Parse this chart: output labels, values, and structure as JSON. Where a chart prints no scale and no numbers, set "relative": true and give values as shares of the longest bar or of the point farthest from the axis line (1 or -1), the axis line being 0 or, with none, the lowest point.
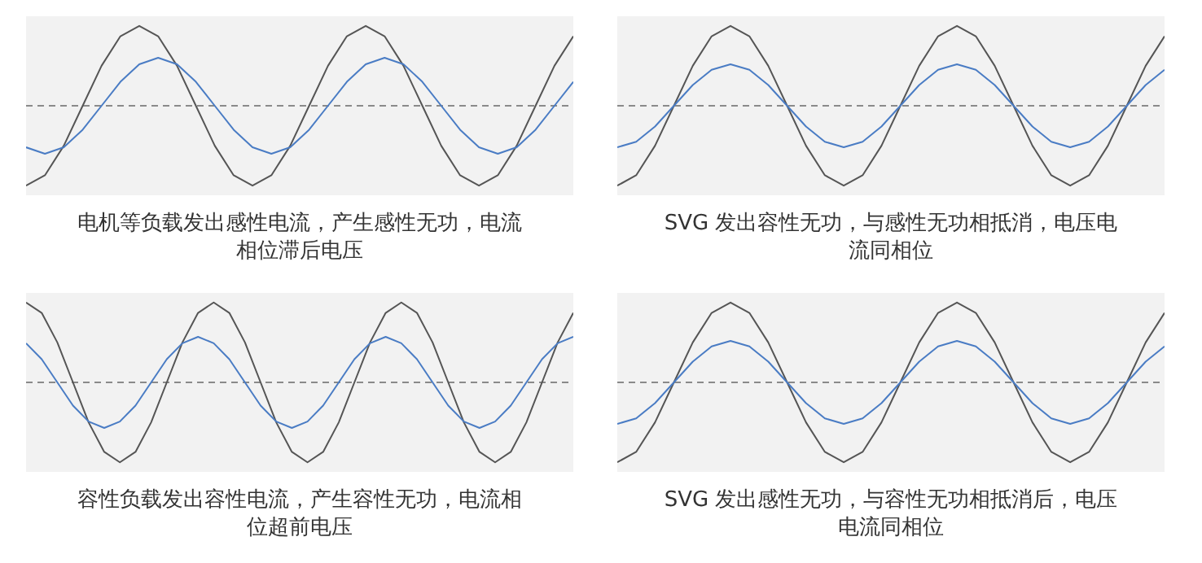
{
  "chart_data": [
    {
      "type": "line",
      "title": "电机等负载发出感性电流，产生感性无功，电流相位滞后电压",
      "relative": true,
      "ref_lines": [
        {
          "axis": "y",
          "value": 0,
          "line_style": "dashed",
          "color": "#8a8a8a"
        }
      ],
      "marker": "none",
      "line_style": "solid",
      "tick_labels": false,
      "categories": [
        null,
        null,
        null,
        null,
        null,
        null,
        null,
        null,
        null,
        null,
        null,
        null,
        null,
        null,
        null,
        null,
        null,
        null,
        null,
        null,
        null,
        null,
        null,
        null,
        null,
        null,
        null,
        null,
        null,
        null
      ],
      "series": [
        {
          "color": "#555555",
          "values": [
            -1,
            -0.87,
            -0.5,
            0,
            0.5,
            0.87,
            1,
            0.87,
            0.5,
            0,
            -0.5,
            -0.87,
            -1,
            -0.87,
            -0.5,
            0,
            0.5,
            0.87,
            1,
            0.87,
            0.5,
            0,
            -0.5,
            -0.87,
            -1,
            -0.87,
            -0.5,
            0,
            0.5,
            0.87
          ]
        },
        {
          "color": "#4a7cc4",
          "values": [
            -0.52,
            -0.6,
            -0.52,
            -0.3,
            0,
            0.3,
            0.52,
            0.6,
            0.52,
            0.3,
            0,
            -0.3,
            -0.52,
            -0.6,
            -0.52,
            -0.3,
            0,
            0.3,
            0.52,
            0.6,
            0.52,
            0.3,
            0,
            -0.3,
            -0.52,
            -0.6,
            -0.52,
            -0.3,
            0,
            0.3
          ]
        }
      ]
    },
    {
      "type": "line",
      "title": "SVG 发出容性无功，与感性无功相抵消，电压电流同相位",
      "relative": true,
      "ref_lines": [
        {
          "axis": "y",
          "value": 0,
          "line_style": "dashed",
          "color": "#8a8a8a"
        }
      ],
      "marker": "none",
      "line_style": "solid",
      "tick_labels": false,
      "categories": [
        null,
        null,
        null,
        null,
        null,
        null,
        null,
        null,
        null,
        null,
        null,
        null,
        null,
        null,
        null,
        null,
        null,
        null,
        null,
        null,
        null,
        null,
        null,
        null,
        null,
        null,
        null,
        null,
        null,
        null
      ],
      "series": [
        {
          "color": "#555555",
          "values": [
            -1,
            -0.87,
            -0.5,
            0,
            0.5,
            0.87,
            1,
            0.87,
            0.5,
            0,
            -0.5,
            -0.87,
            -1,
            -0.87,
            -0.5,
            0,
            0.5,
            0.87,
            1,
            0.87,
            0.5,
            0,
            -0.5,
            -0.87,
            -1,
            -0.87,
            -0.5,
            0,
            0.5,
            0.87
          ]
        },
        {
          "color": "#4a7cc4",
          "values": [
            -0.52,
            -0.45,
            -0.26,
            0,
            0.26,
            0.45,
            0.52,
            0.45,
            0.26,
            0,
            -0.26,
            -0.45,
            -0.52,
            -0.45,
            -0.26,
            0,
            0.26,
            0.45,
            0.52,
            0.45,
            0.26,
            0,
            -0.26,
            -0.45,
            -0.52,
            -0.45,
            -0.26,
            0,
            0.26,
            0.45
          ]
        }
      ]
    },
    {
      "type": "line",
      "title": "容性负载发出容性电流，产生容性无功，电流相位超前电压",
      "relative": true,
      "ref_lines": [
        {
          "axis": "y",
          "value": 0,
          "line_style": "dashed",
          "color": "#8a8a8a"
        }
      ],
      "marker": "none",
      "line_style": "solid",
      "tick_labels": false,
      "categories": [
        null,
        null,
        null,
        null,
        null,
        null,
        null,
        null,
        null,
        null,
        null,
        null,
        null,
        null,
        null,
        null,
        null,
        null,
        null,
        null,
        null,
        null,
        null,
        null,
        null,
        null,
        null,
        null,
        null,
        null,
        null,
        null,
        null,
        null,
        null,
        null
      ],
      "series": [
        {
          "color": "#555555",
          "values": [
            1,
            0.87,
            0.5,
            0,
            -0.5,
            -0.87,
            -1,
            -0.87,
            -0.5,
            0,
            0.5,
            0.87,
            1,
            0.87,
            0.5,
            0,
            -0.5,
            -0.87,
            -1,
            -0.87,
            -0.5,
            0,
            0.5,
            0.87,
            1,
            0.87,
            0.5,
            0,
            -0.5,
            -0.87,
            -1,
            -0.87,
            -0.5,
            0,
            0.5,
            0.87
          ]
        },
        {
          "color": "#4a7cc4",
          "values": [
            0.49,
            0.29,
            0,
            -0.29,
            -0.49,
            -0.57,
            -0.49,
            -0.29,
            0,
            0.29,
            0.49,
            0.57,
            0.49,
            0.29,
            0,
            -0.29,
            -0.49,
            -0.57,
            -0.49,
            -0.29,
            0,
            0.29,
            0.49,
            0.57,
            0.49,
            0.29,
            0,
            -0.29,
            -0.49,
            -0.57,
            -0.49,
            -0.29,
            0,
            0.29,
            0.49,
            0.57
          ]
        }
      ]
    },
    {
      "type": "line",
      "title": "SVG 发出感性无功，与容性无功相抵消后，电压电流同相位",
      "relative": true,
      "ref_lines": [
        {
          "axis": "y",
          "value": 0,
          "line_style": "dashed",
          "color": "#8a8a8a"
        }
      ],
      "marker": "none",
      "line_style": "solid",
      "tick_labels": false,
      "categories": [
        null,
        null,
        null,
        null,
        null,
        null,
        null,
        null,
        null,
        null,
        null,
        null,
        null,
        null,
        null,
        null,
        null,
        null,
        null,
        null,
        null,
        null,
        null,
        null,
        null,
        null,
        null,
        null,
        null,
        null
      ],
      "series": [
        {
          "color": "#555555",
          "values": [
            -1,
            -0.87,
            -0.5,
            0,
            0.5,
            0.87,
            1,
            0.87,
            0.5,
            0,
            -0.5,
            -0.87,
            -1,
            -0.87,
            -0.5,
            0,
            0.5,
            0.87,
            1,
            0.87,
            0.5,
            0,
            -0.5,
            -0.87,
            -1,
            -0.87,
            -0.5,
            0,
            0.5,
            0.87
          ]
        },
        {
          "color": "#4a7cc4",
          "values": [
            -0.52,
            -0.45,
            -0.26,
            0,
            0.26,
            0.45,
            0.52,
            0.45,
            0.26,
            0,
            -0.26,
            -0.45,
            -0.52,
            -0.45,
            -0.26,
            0,
            0.26,
            0.45,
            0.52,
            0.45,
            0.26,
            0,
            -0.26,
            -0.45,
            -0.52,
            -0.45,
            -0.26,
            0,
            0.26,
            0.45
          ]
        }
      ]
    }
  ]
}
